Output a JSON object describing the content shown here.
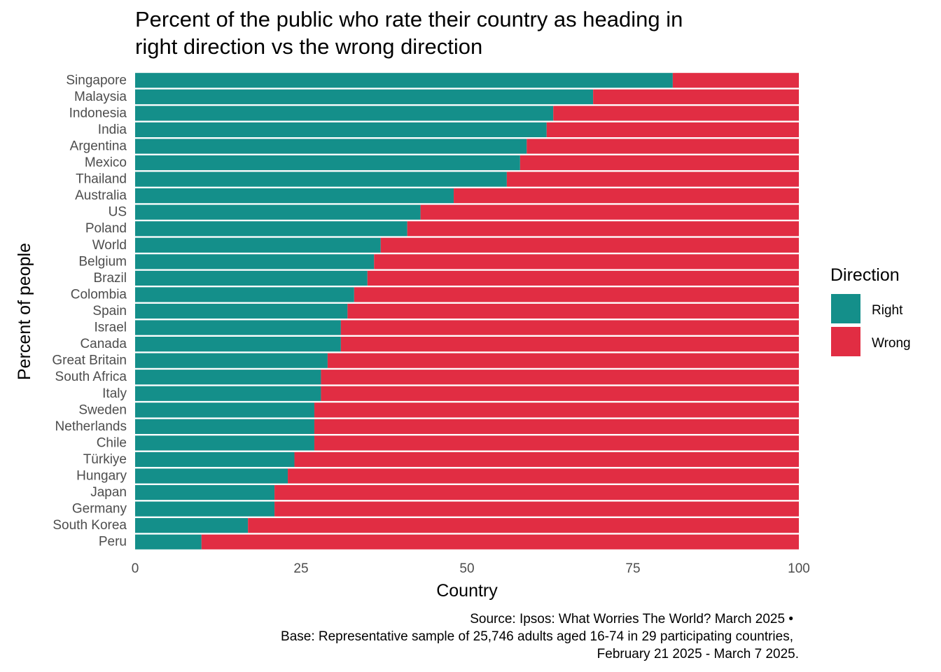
{
  "chart_data": {
    "type": "bar",
    "orientation": "horizontal",
    "stacked": true,
    "title": "Percent of the public who rate their country as heading in right direction vs the wrong direction",
    "title_lines": [
      "Percent of the public who rate their country as heading in",
      "right direction vs the wrong direction"
    ],
    "xlabel": "Country",
    "ylabel": "Percent of people",
    "xlim": [
      0,
      100
    ],
    "xticks": [
      0,
      25,
      50,
      75,
      100
    ],
    "xtick_labels": [
      "0",
      "25",
      "50",
      "75",
      "100"
    ],
    "grid": false,
    "legend_position": "right",
    "legend": {
      "title": "Direction",
      "entries": [
        "Right",
        "Wrong"
      ]
    },
    "categories": [
      "Singapore",
      "Malaysia",
      "Indonesia",
      "India",
      "Argentina",
      "Mexico",
      "Thailand",
      "Australia",
      "US",
      "Poland",
      "World",
      "Belgium",
      "Brazil",
      "Colombia",
      "Spain",
      "Israel",
      "Canada",
      "Great Britain",
      "South Africa",
      "Italy",
      "Sweden",
      "Netherlands",
      "Chile",
      "Türkiye",
      "Hungary",
      "Japan",
      "Germany",
      "South Korea",
      "Peru"
    ],
    "series": [
      {
        "name": "Right",
        "color": "#148F8A",
        "values": [
          81,
          69,
          63,
          62,
          59,
          58,
          56,
          48,
          43,
          41,
          37,
          36,
          35,
          33,
          32,
          31,
          31,
          29,
          28,
          28,
          27,
          27,
          27,
          24,
          23,
          21,
          21,
          17,
          10
        ]
      },
      {
        "name": "Wrong",
        "color": "#E12D43",
        "values": [
          19,
          31,
          37,
          38,
          41,
          42,
          44,
          52,
          57,
          59,
          63,
          64,
          65,
          67,
          68,
          69,
          69,
          71,
          72,
          72,
          73,
          73,
          73,
          76,
          77,
          79,
          79,
          83,
          90
        ]
      }
    ],
    "caption": [
      "Source: Ipsos: What Worries The World? March 2025 •",
      "Base: Representative sample of 25,746 adults aged 16-74 in 29 participating countries,",
      "February 21 2025 - March 7 2025."
    ]
  }
}
